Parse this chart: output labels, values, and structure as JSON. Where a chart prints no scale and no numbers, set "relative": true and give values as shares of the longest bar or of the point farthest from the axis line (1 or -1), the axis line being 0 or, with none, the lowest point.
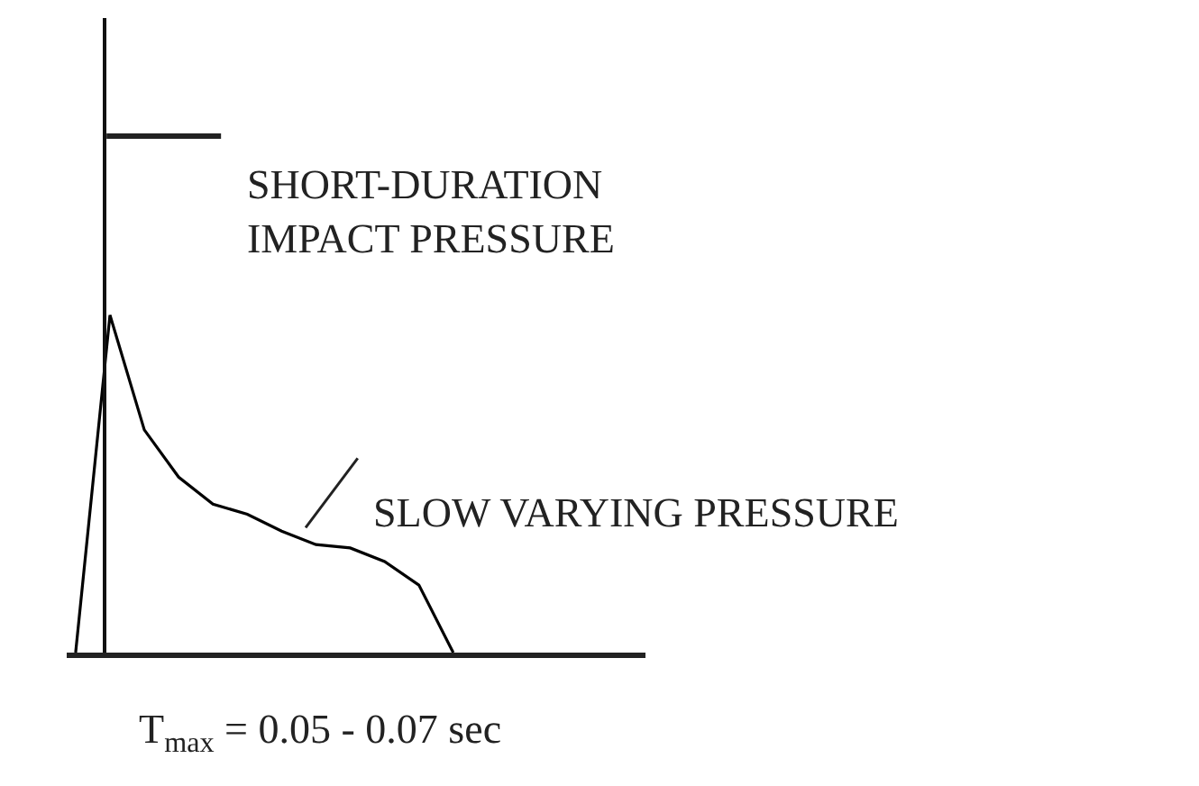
{
  "chart_data": {
    "type": "line",
    "relative": true,
    "legend": false,
    "categories": [
      null,
      null,
      null,
      null,
      null,
      null,
      null,
      null,
      null,
      null,
      null,
      null
    ],
    "series": [
      {
        "color": "#000000",
        "values": [
          0,
          1,
          0.66,
          0.52,
          0.44,
          0.41,
          0.36,
          0.32,
          0.31,
          0.27,
          0.2,
          0
        ]
      }
    ],
    "annotations": [
      "SHORT-DURATION\nIMPACT PRESSURE",
      "SLOW VARYING PRESSURE",
      "T$_{max}$ = 0.05 - 0.07 sec"
    ]
  }
}
